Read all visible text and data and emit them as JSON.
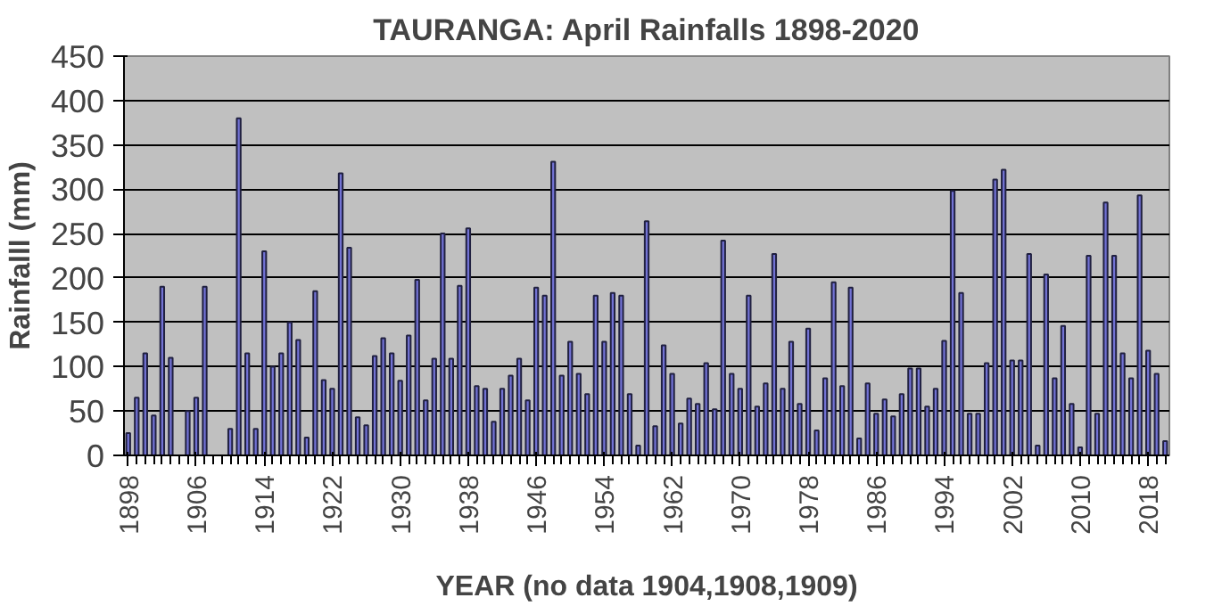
{
  "chart_data": {
    "type": "bar",
    "title": "TAURANGA: April Rainfalls 1898-2020",
    "xlabel": "YEAR (no data 1904,1908,1909)",
    "ylabel": "Rainfalll (mm)",
    "x": [
      1898,
      1899,
      1900,
      1901,
      1902,
      1903,
      1904,
      1905,
      1906,
      1907,
      1908,
      1909,
      1910,
      1911,
      1912,
      1913,
      1914,
      1915,
      1916,
      1917,
      1918,
      1919,
      1920,
      1921,
      1922,
      1923,
      1924,
      1925,
      1926,
      1927,
      1928,
      1929,
      1930,
      1931,
      1932,
      1933,
      1934,
      1935,
      1936,
      1937,
      1938,
      1939,
      1940,
      1941,
      1942,
      1943,
      1944,
      1945,
      1946,
      1947,
      1948,
      1949,
      1950,
      1951,
      1952,
      1953,
      1954,
      1955,
      1956,
      1957,
      1958,
      1959,
      1960,
      1961,
      1962,
      1963,
      1964,
      1965,
      1966,
      1967,
      1968,
      1969,
      1970,
      1971,
      1972,
      1973,
      1974,
      1975,
      1976,
      1977,
      1978,
      1979,
      1980,
      1981,
      1982,
      1983,
      1984,
      1985,
      1986,
      1987,
      1988,
      1989,
      1990,
      1991,
      1992,
      1993,
      1994,
      1995,
      1996,
      1997,
      1998,
      1999,
      2000,
      2001,
      2002,
      2003,
      2004,
      2005,
      2006,
      2007,
      2008,
      2009,
      2010,
      2011,
      2012,
      2013,
      2014,
      2015,
      2016,
      2017,
      2018,
      2019,
      2020
    ],
    "values": [
      25,
      65,
      115,
      45,
      190,
      110,
      null,
      50,
      65,
      190,
      null,
      null,
      30,
      380,
      115,
      30,
      230,
      100,
      115,
      150,
      130,
      20,
      185,
      85,
      75,
      318,
      234,
      43,
      34,
      112,
      132,
      115,
      84,
      135,
      198,
      62,
      109,
      250,
      109,
      191,
      256,
      78,
      75,
      38,
      75,
      90,
      109,
      62,
      189,
      180,
      331,
      90,
      128,
      92,
      69,
      180,
      128,
      183,
      180,
      69,
      11,
      264,
      33,
      124,
      92,
      36,
      64,
      58,
      104,
      52,
      242,
      92,
      75,
      180,
      55,
      81,
      227,
      75,
      128,
      58,
      143,
      28,
      87,
      195,
      78,
      189,
      19,
      81,
      47,
      63,
      44,
      69,
      98,
      98,
      55,
      75,
      129,
      298,
      183,
      47,
      47,
      104,
      311,
      322,
      107,
      107,
      227,
      11,
      204,
      87,
      146,
      58,
      9,
      225,
      47,
      285,
      225,
      115,
      87,
      293,
      118,
      92,
      16
    ],
    "color": "#7272d4",
    "xlim": [
      1897.5,
      2020.5
    ],
    "ylim": [
      0,
      450
    ],
    "xticks": [
      1898,
      1906,
      1914,
      1922,
      1930,
      1938,
      1946,
      1954,
      1962,
      1970,
      1978,
      1986,
      1994,
      2002,
      2010,
      2018
    ],
    "yticks": [
      0,
      50,
      100,
      150,
      200,
      250,
      300,
      350,
      400,
      450
    ],
    "grid": "y"
  }
}
